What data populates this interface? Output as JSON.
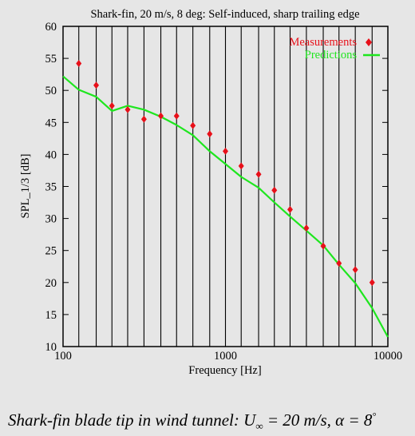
{
  "chart_data": {
    "type": "scatter",
    "title": "Shark-fin, 20 m/s, 8 deg: Self-induced, sharp trailing edge",
    "xlabel": "Frequency [Hz]",
    "ylabel": "SPL_1/3 [dB]",
    "x_scale": "log",
    "xlim": [
      100,
      10000
    ],
    "ylim": [
      10,
      60
    ],
    "x_ticks": [
      100,
      1000,
      10000
    ],
    "x_tick_labels": [
      "100",
      "1000",
      "10000"
    ],
    "y_ticks": [
      10,
      15,
      20,
      25,
      30,
      35,
      40,
      45,
      50,
      55,
      60
    ],
    "y_tick_labels": [
      "10",
      "15",
      "20",
      "25",
      "30",
      "35",
      "40",
      "45",
      "50",
      "55",
      "60"
    ],
    "grid": "vertical lines at 1/3-octave band frequencies",
    "legend_position": "top-right",
    "series": [
      {
        "name": "Measurements",
        "kind": "points",
        "color": "#e8101a",
        "x": [
          125,
          160,
          200,
          250,
          315,
          400,
          500,
          630,
          800,
          1000,
          1250,
          1600,
          2000,
          2500,
          3150,
          4000,
          5000,
          6300,
          8000
        ],
        "y": [
          54.2,
          50.8,
          47.6,
          47.0,
          45.5,
          46.0,
          46.0,
          44.5,
          43.2,
          40.5,
          38.2,
          36.9,
          34.4,
          31.4,
          28.5,
          25.7,
          23.0,
          22.0,
          20.0
        ]
      },
      {
        "name": "Predictions",
        "kind": "line",
        "color": "#1ee61e",
        "x": [
          100,
          125,
          160,
          200,
          250,
          315,
          400,
          500,
          630,
          800,
          1000,
          1250,
          1600,
          2000,
          2500,
          3150,
          4000,
          5000,
          6300,
          8000,
          10000
        ],
        "y": [
          52.2,
          50.1,
          49.0,
          46.8,
          47.6,
          47.0,
          45.9,
          44.6,
          43.0,
          40.5,
          38.5,
          36.5,
          34.8,
          32.5,
          30.3,
          28.1,
          25.8,
          22.8,
          19.9,
          16.0,
          11.5
        ]
      }
    ]
  },
  "caption": {
    "prefix": "Shark-fin blade tip in wind  tunnel: ",
    "u_symbol": "U",
    "u_subscript": "∞",
    "equals_text": " = 20 m/s,  α = 8",
    "degree": "°"
  },
  "colors": {
    "background": "#e6e6e6",
    "measurements": "#e8101a",
    "predictions": "#1ee61e"
  }
}
